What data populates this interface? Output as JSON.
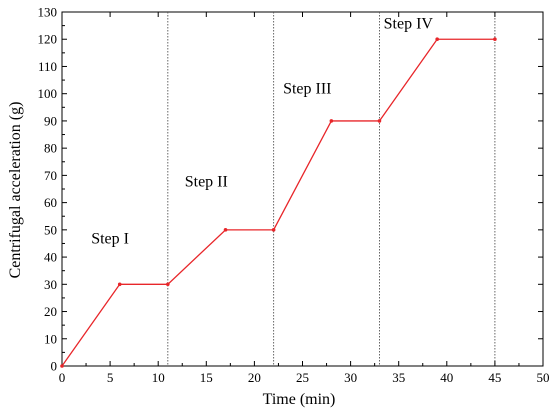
{
  "chart_data": {
    "type": "line",
    "xlabel": "Time (min)",
    "ylabel": "Centrifugal acceleration (g)",
    "xlim": [
      0,
      50
    ],
    "ylim": [
      0,
      130
    ],
    "x_ticks": [
      0,
      5,
      10,
      15,
      20,
      25,
      30,
      35,
      40,
      45,
      50
    ],
    "y_ticks": [
      0,
      10,
      20,
      30,
      40,
      50,
      60,
      70,
      80,
      90,
      100,
      110,
      120,
      130
    ],
    "grid": false,
    "series": [
      {
        "color": "#e8262a",
        "points": [
          {
            "x": 0,
            "y": 0
          },
          {
            "x": 6,
            "y": 30
          },
          {
            "x": 11,
            "y": 30
          },
          {
            "x": 17,
            "y": 50
          },
          {
            "x": 22,
            "y": 50
          },
          {
            "x": 28,
            "y": 90
          },
          {
            "x": 33,
            "y": 90
          },
          {
            "x": 39,
            "y": 120
          },
          {
            "x": 45,
            "y": 120
          }
        ]
      }
    ],
    "step_boundaries": [
      11,
      22,
      33,
      45
    ],
    "annotations": [
      {
        "text": "Step I",
        "x": 5,
        "y": 45
      },
      {
        "text": "Step II",
        "x": 15,
        "y": 66
      },
      {
        "text": "Step III",
        "x": 25.5,
        "y": 100
      },
      {
        "text": "Step IV",
        "x": 36,
        "y": 124
      }
    ]
  }
}
